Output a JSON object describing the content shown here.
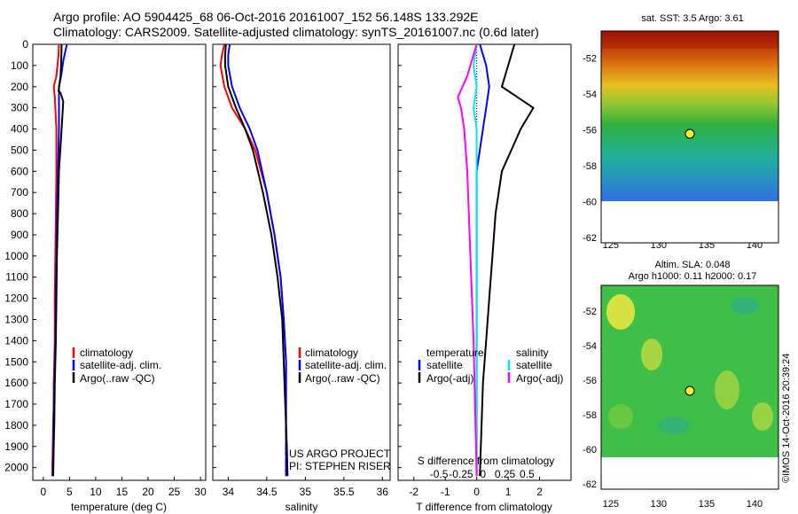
{
  "header": {
    "line1": "Argo profile: AO 5904425_68 06-Oct-2016 20161007_152 56.148S 133.292E",
    "line2": "Climatology: CARS2009. Satellite-adjusted climatology: synTS_20161007.nc (0.6d later)"
  },
  "colors": {
    "climatology": "#ff0000",
    "satellite": "#0000ff",
    "argo": "#000000",
    "salinity_sat": "#00e5ee",
    "salinity_argo": "#ff00ff"
  },
  "depth_ticks": [
    "0",
    "100",
    "200",
    "300",
    "400",
    "500",
    "600",
    "700",
    "800",
    "900",
    "1000",
    "1100",
    "1200",
    "1300",
    "1400",
    "1500",
    "1600",
    "1700",
    "1800",
    "1900",
    "2000"
  ],
  "chart_data": [
    {
      "type": "line",
      "xlabel": "temperature (deg C)",
      "xlim": [
        -2,
        31
      ],
      "ylim": [
        2060,
        0
      ],
      "x_ticks": [
        "0",
        "5",
        "10",
        "15",
        "20",
        "25",
        "30"
      ],
      "legend": [
        "climatology",
        "satellite-adj. clim.",
        "Argo(..raw -QC)"
      ],
      "series": [
        {
          "name": "climatology",
          "x": [
            3.0,
            2.9,
            2.5,
            2.0,
            2.2,
            2.5,
            2.5,
            2.4,
            2.3,
            2.2,
            2.2,
            2.1,
            2.0,
            2.0,
            1.9,
            1.8,
            1.7
          ],
          "y": [
            0,
            50,
            150,
            200,
            250,
            400,
            600,
            800,
            1000,
            1200,
            1400,
            1500,
            1600,
            1700,
            1800,
            1900,
            2040
          ]
        },
        {
          "name": "satellite-adj. clim.",
          "x": [
            4.5,
            3.8,
            3.4,
            3.0,
            3.0,
            3.0,
            2.8,
            2.6,
            2.5,
            2.4,
            2.3,
            2.2,
            2.1,
            2.0,
            1.9,
            1.8
          ],
          "y": [
            0,
            80,
            150,
            200,
            300,
            400,
            600,
            800,
            1000,
            1200,
            1400,
            1500,
            1600,
            1700,
            1900,
            2040
          ]
        },
        {
          "name": "Argo(..raw -QC)",
          "x": [
            3.5,
            3.4,
            3.3,
            2.9,
            3.3,
            3.8,
            3.5,
            3.0,
            2.8,
            2.6,
            2.5,
            2.4,
            2.2,
            2.1,
            2.0,
            1.9
          ],
          "y": [
            0,
            100,
            150,
            220,
            230,
            270,
            400,
            600,
            800,
            1000,
            1200,
            1400,
            1600,
            1800,
            1900,
            2040
          ]
        }
      ]
    },
    {
      "type": "line",
      "xlabel": "salinity",
      "xlim": [
        33.8,
        36.1
      ],
      "ylim": [
        2060,
        0
      ],
      "x_ticks": [
        "34",
        "34.5",
        "35",
        "35.5",
        "36"
      ],
      "legend": [
        "climatology",
        "satellite-adj. clim.",
        "Argo(..raw -QC)"
      ],
      "annotations": [
        "US ARGO PROJECT",
        "PI: STEPHEN RISER"
      ],
      "series": [
        {
          "name": "climatology",
          "x": [
            33.95,
            33.92,
            33.9,
            33.95,
            34.05,
            34.22,
            34.35,
            34.5,
            34.6,
            34.68,
            34.72,
            34.75,
            34.75,
            34.75,
            34.75,
            34.75
          ],
          "y": [
            0,
            50,
            100,
            200,
            300,
            400,
            500,
            700,
            900,
            1100,
            1300,
            1500,
            1600,
            1800,
            1900,
            2040
          ]
        },
        {
          "name": "satellite-adj. clim.",
          "x": [
            34.02,
            34.0,
            34.0,
            34.05,
            34.15,
            34.28,
            34.38,
            34.5,
            34.6,
            34.68,
            34.72,
            34.75,
            34.75,
            34.75,
            34.75,
            34.75
          ],
          "y": [
            0,
            50,
            100,
            200,
            300,
            400,
            500,
            700,
            900,
            1100,
            1300,
            1500,
            1600,
            1800,
            1900,
            2040
          ]
        },
        {
          "name": "Argo(..raw -QC)",
          "x": [
            33.97,
            33.96,
            33.96,
            34.0,
            34.1,
            34.22,
            34.32,
            34.45,
            34.56,
            34.64,
            34.7,
            34.72,
            34.74,
            34.76,
            34.77
          ],
          "y": [
            0,
            50,
            100,
            200,
            300,
            400,
            500,
            700,
            900,
            1100,
            1300,
            1500,
            1700,
            1900,
            2040
          ]
        }
      ]
    },
    {
      "type": "line",
      "xlabel": "T difference from climatology",
      "xlabel_top": "S difference from climatology",
      "xlim": [
        -2.5,
        3
      ],
      "ylim": [
        2060,
        0
      ],
      "x_ticks": [
        "-2",
        "-1",
        "0",
        "1",
        "2"
      ],
      "x_ticks_top": [
        "-0.5",
        "-0.25",
        "0",
        "0.25",
        "0.5"
      ],
      "legend": [
        "temperature",
        "satellite",
        "Argo(-adj)",
        "salinity",
        "satellite",
        "Argo(-adj)"
      ],
      "series": [
        {
          "name": "satellite",
          "x": [
            0.1,
            0.3,
            0.4,
            0.3,
            0.2,
            0.0,
            0.0,
            0.0,
            0.0,
            0.0,
            0.0,
            0.0
          ],
          "y": [
            0,
            100,
            200,
            300,
            400,
            600,
            800,
            1000,
            1200,
            1400,
            1600,
            2040
          ]
        },
        {
          "name": "Argo(-adj)",
          "x": [
            1.2,
            1.0,
            0.8,
            1.8,
            1.4,
            0.8,
            0.6,
            0.5,
            0.4,
            0.3,
            0.2,
            0.1
          ],
          "y": [
            0,
            100,
            200,
            300,
            400,
            600,
            800,
            1000,
            1200,
            1400,
            1600,
            2040
          ]
        },
        {
          "name": "satellite",
          "x": [
            0.0,
            -0.1,
            0.0,
            -0.1,
            0.0,
            0.0,
            0.0,
            0.0,
            0.0,
            0.0,
            0.0
          ],
          "y": [
            0,
            100,
            200,
            300,
            400,
            600,
            800,
            1000,
            1200,
            1400,
            2040
          ]
        },
        {
          "name": "Argo(-adj)",
          "x": [
            0.0,
            -0.3,
            -0.6,
            -0.5,
            -0.4,
            -0.3,
            -0.2,
            -0.1,
            0.0
          ],
          "y": [
            0,
            150,
            250,
            300,
            400,
            600,
            1000,
            1400,
            2040
          ]
        }
      ]
    }
  ],
  "maps": {
    "sst_title": "sat. SST: 3.5 Argo: 3.61",
    "sla_title_1": "Altim. SLA: 0.048",
    "sla_title_2": "Argo h1000: 0.11 h2000: 0.17",
    "lat_ticks": [
      "-52",
      "-54",
      "-56",
      "-58",
      "-60",
      "-62"
    ],
    "lon_ticks": [
      "125",
      "130",
      "135",
      "140"
    ],
    "argo_position": {
      "lon": 133.3,
      "lat": -56.15
    }
  },
  "credit": "©IMOS 14-Oct-2016 20:39:24"
}
